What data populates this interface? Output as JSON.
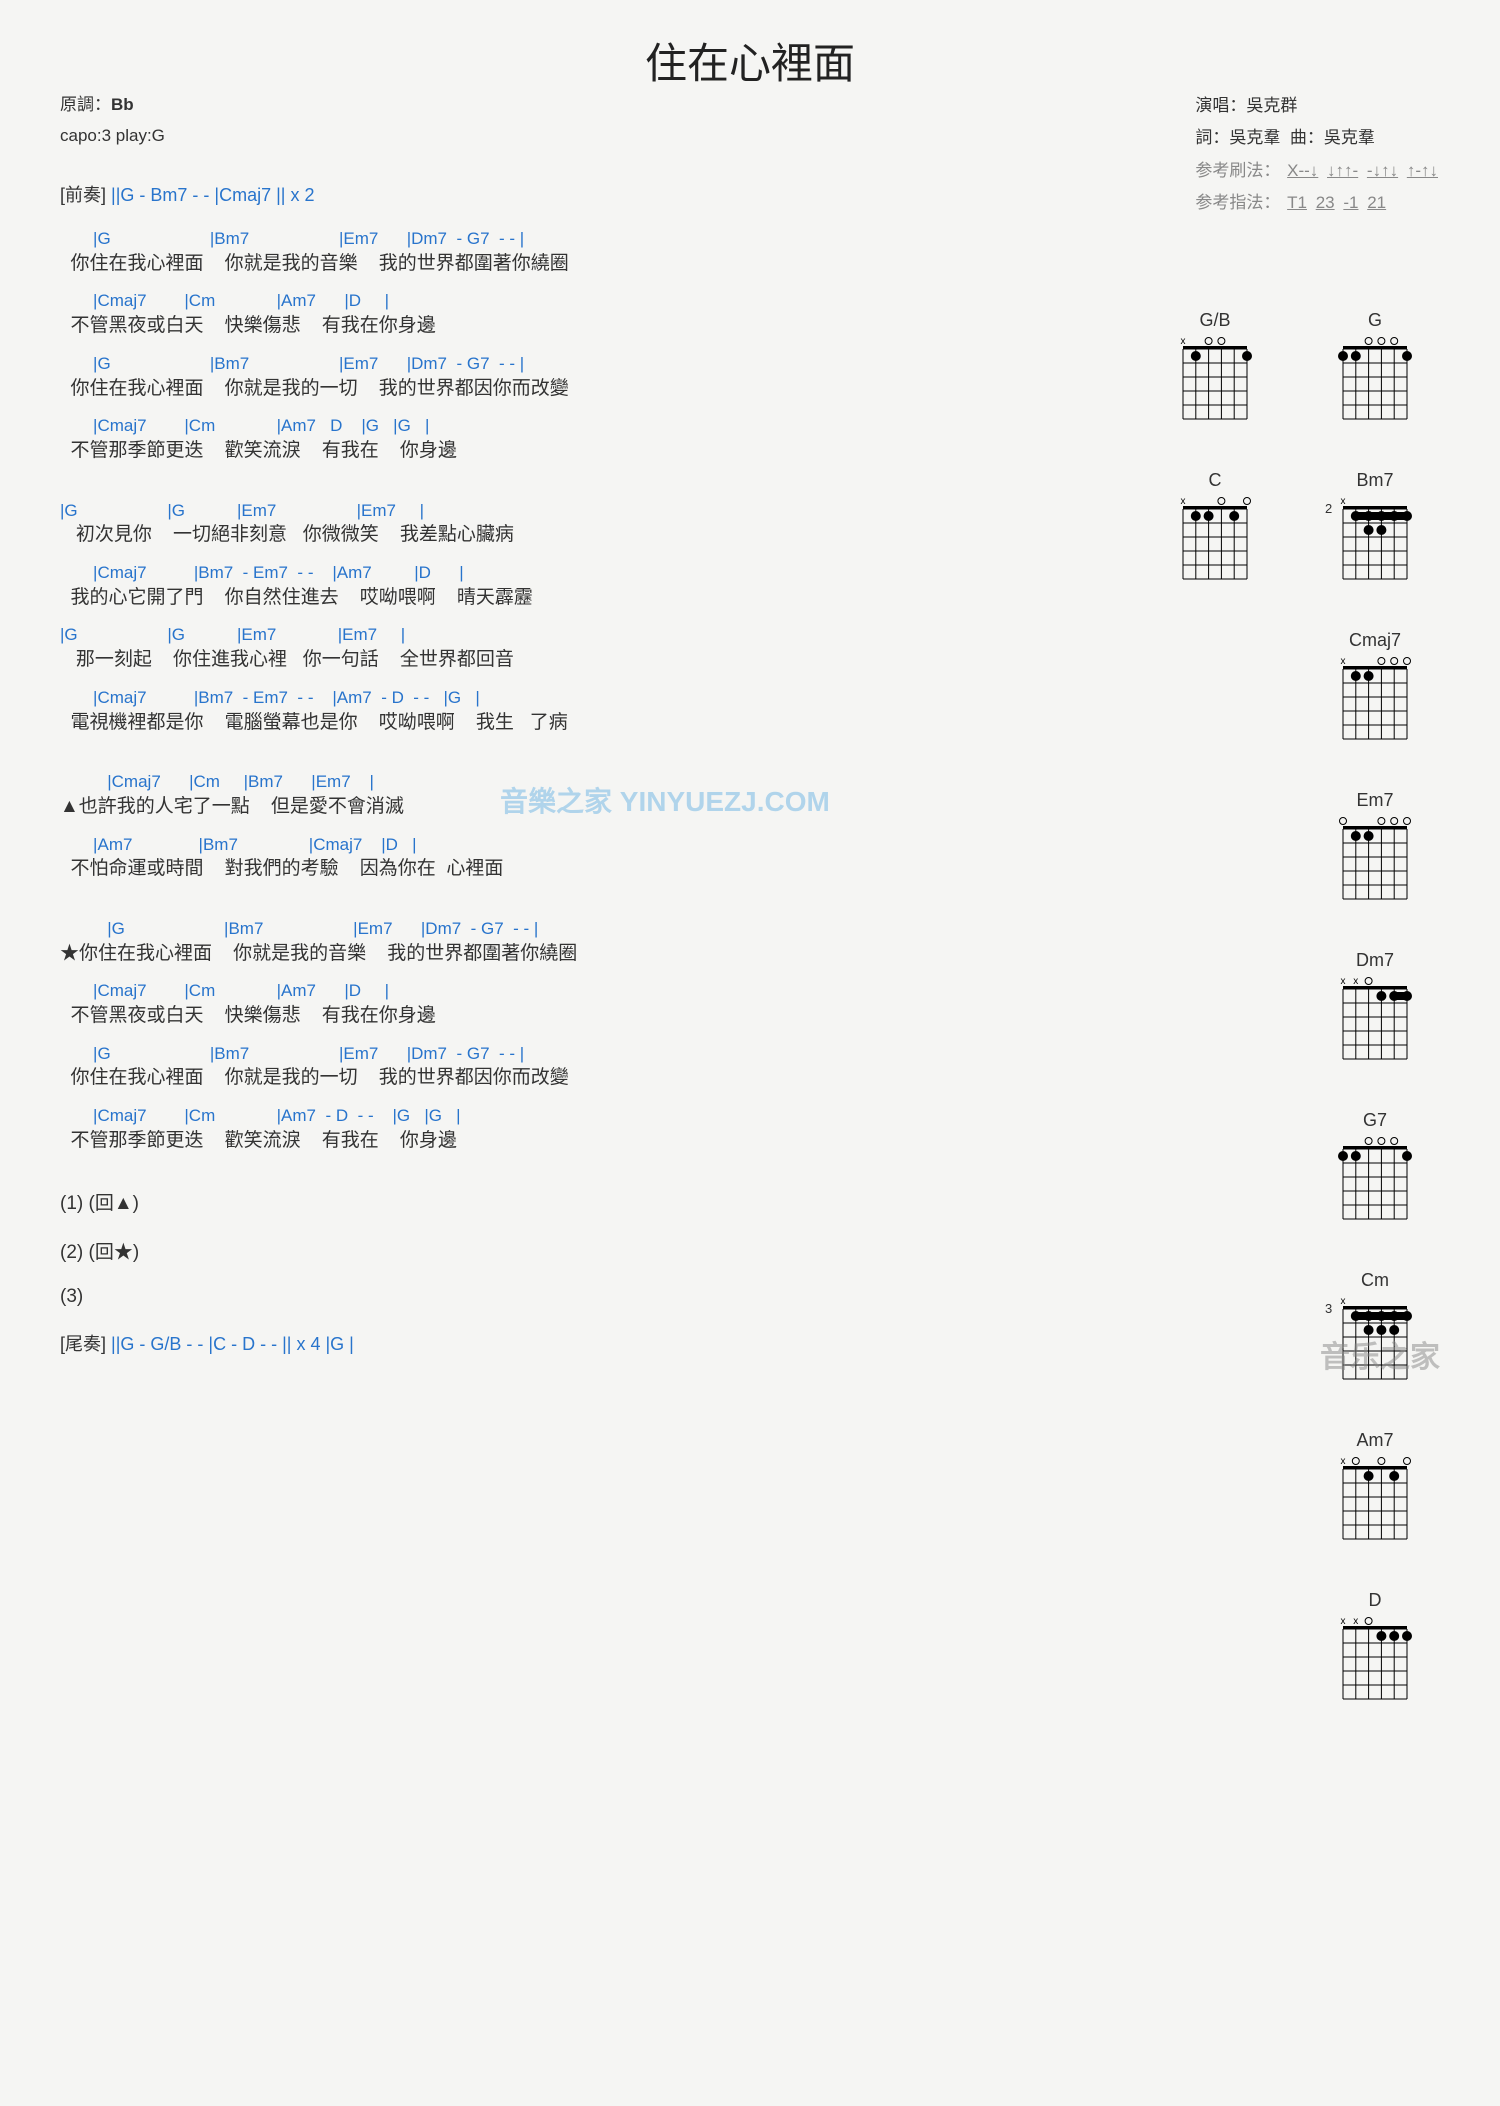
{
  "title": "住在心裡面",
  "meta": {
    "orig_key_label": "原調：",
    "orig_key": "Bb",
    "capo": "capo:3 play:G",
    "singer_label": "演唱：",
    "singer": "吳克群",
    "lyrics_label": "詞：",
    "lyricist": "吳克羣",
    "music_label": "曲：",
    "composer": "吳克羣",
    "strum_label": "参考刷法：",
    "strum_patterns": [
      "X--↓",
      "↓↑↑-",
      "-↓↑↓",
      "↑-↑↓"
    ],
    "finger_label": "参考指法：",
    "finger_patterns": [
      "T1",
      "23",
      "-1",
      "21"
    ]
  },
  "intro": {
    "label": "[前奏]",
    "chords": "||G  - Bm7  - - |Cmaj7  || x 2"
  },
  "verse1": {
    "l1c": "       |G                     |Bm7                   |Em7      |Dm7  - G7  - - |",
    "l1": "  你住在我心裡面    你就是我的音樂    我的世界都圍著你繞圈",
    "l2c": "       |Cmaj7        |Cm             |Am7      |D     |",
    "l2": "  不管黑夜或白天    快樂傷悲    有我在你身邊",
    "l3c": "       |G                     |Bm7                   |Em7      |Dm7  - G7  - - |",
    "l3": "  你住在我心裡面    你就是我的一切    我的世界都因你而改變",
    "l4c": "       |Cmaj7        |Cm             |Am7   D    |G   |G   |",
    "l4": "  不管那季節更迭    歡笑流淚    有我在    你身邊"
  },
  "verse2": {
    "l1c": "|G                   |G           |Em7                 |Em7     |",
    "l1": "   初次見你    一切絕非刻意   你微微笑    我差點心臟病",
    "l2c": "       |Cmaj7          |Bm7  - Em7  - -    |Am7         |D      |",
    "l2": "  我的心它開了門    你自然住進去    哎呦喂啊    晴天霹靂",
    "l3c": "|G                   |G           |Em7             |Em7     |",
    "l3": "   那一刻起    你住進我心裡   你一句話    全世界都回音",
    "l4c": "       |Cmaj7          |Bm7  - Em7  - -    |Am7  - D  - -   |G   |",
    "l4": "  電視機裡都是你    電腦螢幕也是你    哎呦喂啊    我生   了病"
  },
  "bridge": {
    "l1c": "          |Cmaj7      |Cm     |Bm7      |Em7    |",
    "l1": "▲也許我的人宅了一點    但是愛不會消滅",
    "l2c": "       |Am7              |Bm7               |Cmaj7    |D   |",
    "l2": "  不怕命運或時間    對我們的考驗    因為你在  心裡面"
  },
  "chorus": {
    "l1c": "          |G                     |Bm7                   |Em7      |Dm7  - G7  - - |",
    "l1": "★你住在我心裡面    你就是我的音樂    我的世界都圍著你繞圈",
    "l2c": "       |Cmaj7        |Cm             |Am7      |D     |",
    "l2": "  不管黑夜或白天    快樂傷悲    有我在你身邊",
    "l3c": "       |G                     |Bm7                   |Em7      |Dm7  - G7  - - |",
    "l3": "  你住在我心裡面    你就是我的一切    我的世界都因你而改變",
    "l4c": "       |Cmaj7        |Cm             |Am7  - D  - -    |G   |G   |",
    "l4": "  不管那季節更迭    歡笑流淚    有我在    你身邊"
  },
  "coda": {
    "c1": "(1)  (回▲)",
    "c2": "(2)  (回★)",
    "c3": "(3)",
    "outro_label": "[尾奏]",
    "outro": "||G  - G/B  - - |C  - D  - - || x 4 |G   |"
  },
  "chord_diagrams": [
    {
      "row": [
        {
          "name": "G/B",
          "open": [
            "x",
            "",
            "o",
            "o",
            "",
            ""
          ],
          "dots": [
            [
              0,
              1,
              2
            ],
            [
              0,
              5,
              3
            ]
          ],
          "fret": ""
        },
        {
          "name": "G",
          "open": [
            "",
            "",
            "o",
            "o",
            "o",
            ""
          ],
          "dots": [
            [
              0,
              0,
              3
            ],
            [
              0,
              1,
              2
            ],
            [
              0,
              5,
              3
            ]
          ],
          "fret": ""
        }
      ]
    },
    {
      "row": [
        {
          "name": "C",
          "open": [
            "x",
            "",
            "",
            "o",
            "",
            "o"
          ],
          "dots": [
            [
              0,
              1,
              3
            ],
            [
              0,
              2,
              2
            ],
            [
              0,
              4,
              1
            ]
          ],
          "fret": ""
        },
        {
          "name": "Bm7",
          "open": [
            "x",
            "",
            "",
            "",
            "",
            ""
          ],
          "dots": [
            [
              0,
              1,
              1
            ],
            [
              0,
              2,
              1
            ],
            [
              0,
              3,
              1
            ],
            [
              0,
              4,
              1
            ],
            [
              0,
              5,
              1
            ],
            [
              1,
              2,
              2
            ],
            [
              1,
              3,
              2
            ]
          ],
          "fret": "2",
          "barre": [
            1,
            5,
            0
          ]
        }
      ]
    },
    {
      "row": [
        {
          "name": "Cmaj7",
          "open": [
            "x",
            "",
            "",
            "o",
            "o",
            "o"
          ],
          "dots": [
            [
              0,
              1,
              3
            ],
            [
              0,
              2,
              2
            ]
          ],
          "fret": ""
        }
      ]
    },
    {
      "row": [
        {
          "name": "Em7",
          "open": [
            "o",
            "",
            "",
            "o",
            "o",
            "o"
          ],
          "dots": [
            [
              0,
              1,
              2
            ],
            [
              0,
              2,
              2
            ]
          ],
          "fret": ""
        }
      ]
    },
    {
      "row": [
        {
          "name": "Dm7",
          "open": [
            "x",
            "x",
            "o",
            "",
            "",
            ""
          ],
          "dots": [
            [
              0,
              3,
              2
            ],
            [
              0,
              4,
              1
            ],
            [
              0,
              5,
              1
            ]
          ],
          "fret": "",
          "barre": [
            4,
            5,
            0
          ]
        }
      ]
    },
    {
      "row": [
        {
          "name": "G7",
          "open": [
            "",
            "",
            "o",
            "o",
            "o",
            ""
          ],
          "dots": [
            [
              0,
              0,
              3
            ],
            [
              0,
              1,
              2
            ],
            [
              0,
              5,
              1
            ]
          ],
          "fret": ""
        }
      ]
    },
    {
      "row": [
        {
          "name": "Cm",
          "open": [
            "x",
            "",
            "",
            "",
            "",
            ""
          ],
          "dots": [
            [
              0,
              1,
              1
            ],
            [
              0,
              2,
              1
            ],
            [
              0,
              3,
              1
            ],
            [
              0,
              4,
              1
            ],
            [
              0,
              5,
              1
            ],
            [
              1,
              2,
              2
            ],
            [
              1,
              3,
              2
            ],
            [
              1,
              4,
              2
            ]
          ],
          "fret": "3",
          "barre": [
            1,
            5,
            0
          ]
        }
      ]
    },
    {
      "row": [
        {
          "name": "Am7",
          "open": [
            "x",
            "o",
            "",
            "o",
            "",
            "o"
          ],
          "dots": [
            [
              0,
              2,
              2
            ],
            [
              0,
              4,
              1
            ]
          ],
          "fret": ""
        }
      ]
    },
    {
      "row": [
        {
          "name": "D",
          "open": [
            "x",
            "x",
            "o",
            "",
            "",
            ""
          ],
          "dots": [
            [
              0,
              3,
              2
            ],
            [
              0,
              4,
              3
            ],
            [
              0,
              5,
              2
            ]
          ],
          "fret": ""
        }
      ]
    }
  ],
  "colors": {
    "chord": "#2874cc",
    "text": "#333333",
    "bg": "#f5f5f3",
    "ref": "#888888"
  },
  "watermark1": "音樂之家 YINYUEZJ.COM",
  "watermark2": "音乐之家"
}
